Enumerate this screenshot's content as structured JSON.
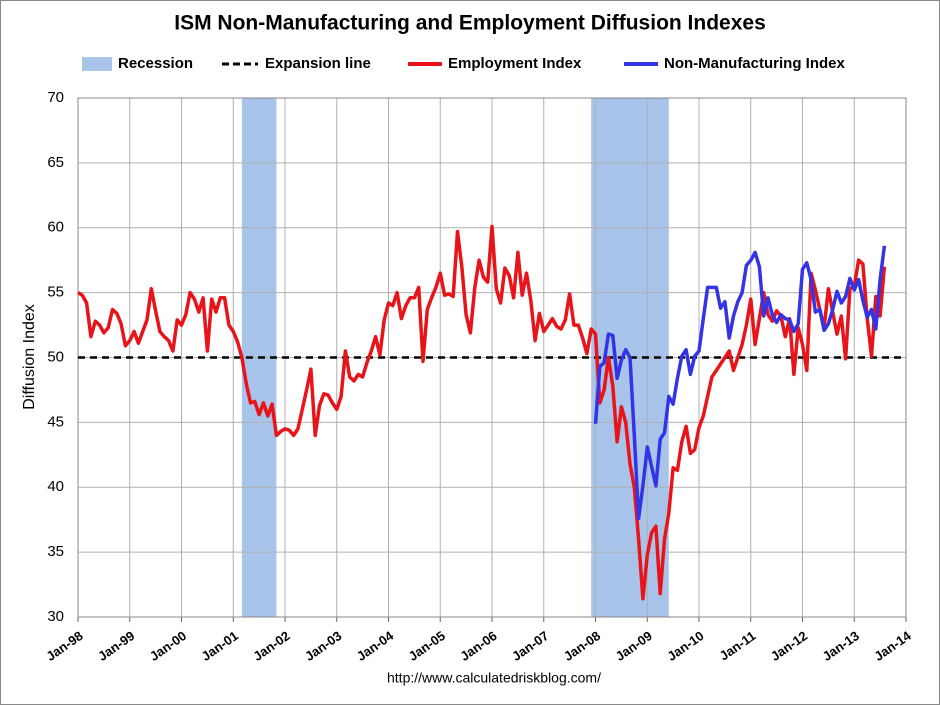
{
  "chart_data": {
    "type": "line",
    "title": "ISM Non-Manufacturing and Employment Diffusion Indexes",
    "ylabel": "Diffusion Index",
    "source": "http://www.calculatedriskblog.com/",
    "recessions": {
      "name": "Recession",
      "color": "#a9c4ea",
      "periods": [
        {
          "start": "2001-03",
          "end": "2001-11"
        },
        {
          "start": "2007-12",
          "end": "2009-06"
        }
      ]
    },
    "expansion_line": {
      "name": "Expansion line",
      "value": 50,
      "color": "#000000"
    },
    "series": [
      {
        "name": "Employment Index",
        "color": "#e8141a",
        "start": "1998-01",
        "values": [
          55,
          54.8,
          54.2,
          51.6,
          52.8,
          52.5,
          51.9,
          52.3,
          53.7,
          53.4,
          52.6,
          50.9,
          51.3,
          52,
          51.1,
          52,
          52.9,
          55.3,
          53.6,
          52,
          51.6,
          51.3,
          50.5,
          52.9,
          52.5,
          53.3,
          55,
          54.5,
          53.5,
          54.6,
          50.5,
          54.5,
          53.5,
          54.6,
          54.6,
          52.5,
          52,
          51.2,
          50,
          48,
          46.5,
          46.6,
          45.6,
          46.5,
          45.5,
          46.4,
          44,
          44.3,
          44.5,
          44.4,
          44,
          44.5,
          46,
          47.5,
          49.1,
          44,
          46.3,
          47.2,
          47.1,
          46.5,
          46,
          47,
          50.5,
          48.5,
          48.2,
          48.7,
          48.5,
          49.6,
          50.5,
          51.6,
          50.2,
          52.9,
          54.2,
          54,
          55,
          53,
          54,
          54.6,
          54.6,
          55.4,
          49.7,
          53.7,
          54.6,
          55.4,
          56.5,
          54.8,
          54.9,
          54.7,
          59.7,
          57,
          53.3,
          51.9,
          55.4,
          57.5,
          56.2,
          55.8,
          60.1,
          55.3,
          54.2,
          56.9,
          56.3,
          54.6,
          58.1,
          54.8,
          56.5,
          54.4,
          51.3,
          53.4,
          52,
          52.5,
          53,
          52.4,
          52.2,
          52.9,
          54.9,
          52.5,
          52.5,
          51.5,
          50.3,
          52.2,
          51.8,
          46.5,
          47.5,
          50,
          47.8,
          43.5,
          46.2,
          45,
          41.8,
          40,
          36,
          31.4,
          34.8,
          36.5,
          37,
          31.8,
          36,
          38,
          41.5,
          41.3,
          43.5,
          44.7,
          42.6,
          42.9,
          44.6,
          45.5,
          47,
          48.5,
          49,
          49.5,
          50,
          50.5,
          49,
          50,
          51,
          52.5,
          54.5,
          51,
          53,
          55,
          53.3,
          52.8,
          53.6,
          53.2,
          51.6,
          53,
          48.7,
          52.3,
          51,
          49,
          56.5,
          55.2,
          53.7,
          52.3,
          55.3,
          53.5,
          51.8,
          53.2,
          49.9,
          55.3,
          55.5,
          57.5,
          57.2,
          53,
          50.1,
          54.7,
          53.2,
          57
        ]
      },
      {
        "name": "Non-Manufacturing Index",
        "color": "#3434e6",
        "start": "2008-01",
        "values": [
          44.9,
          49.3,
          49.6,
          51.8,
          51.7,
          48.4,
          49.8,
          50.6,
          50,
          44,
          37.6,
          40.1,
          43.1,
          41.6,
          40.1,
          43.7,
          44.2,
          47,
          46.4,
          48.4,
          50.1,
          50.6,
          48.7,
          50.1,
          50.5,
          53,
          55.4,
          55.4,
          55.4,
          53.8,
          54.3,
          51.5,
          53.2,
          54.3,
          55,
          57.1,
          57.5,
          58.1,
          57,
          53.2,
          54.6,
          53.3,
          52.7,
          53.3,
          53,
          52.9,
          52,
          52.6,
          56.8,
          57.3,
          56,
          53.5,
          53.7,
          52.1,
          52.6,
          53.7,
          55.1,
          54.2,
          54.7,
          56.1,
          55.2,
          56,
          54.4,
          53.1,
          53.7,
          52.2,
          56,
          58.6
        ]
      }
    ],
    "xlim": [
      "1998-01",
      "2014-01"
    ],
    "xticks": [
      {
        "value": "1998-01",
        "label": "Jan-98"
      },
      {
        "value": "1999-01",
        "label": "Jan-99"
      },
      {
        "value": "2000-01",
        "label": "Jan-00"
      },
      {
        "value": "2001-01",
        "label": "Jan-01"
      },
      {
        "value": "2002-01",
        "label": "Jan-02"
      },
      {
        "value": "2003-01",
        "label": "Jan-03"
      },
      {
        "value": "2004-01",
        "label": "Jan-04"
      },
      {
        "value": "2005-01",
        "label": "Jan-05"
      },
      {
        "value": "2006-01",
        "label": "Jan-06"
      },
      {
        "value": "2007-01",
        "label": "Jan-07"
      },
      {
        "value": "2008-01",
        "label": "Jan-08"
      },
      {
        "value": "2009-01",
        "label": "Jan-09"
      },
      {
        "value": "2010-01",
        "label": "Jan-10"
      },
      {
        "value": "2011-01",
        "label": "Jan-11"
      },
      {
        "value": "2012-01",
        "label": "Jan-12"
      },
      {
        "value": "2013-01",
        "label": "Jan-13"
      },
      {
        "value": "2014-01",
        "label": "Jan-14"
      }
    ],
    "ylim": [
      30,
      70
    ],
    "yticks": [
      30,
      35,
      40,
      45,
      50,
      55,
      60,
      65,
      70
    ],
    "grid": true
  }
}
